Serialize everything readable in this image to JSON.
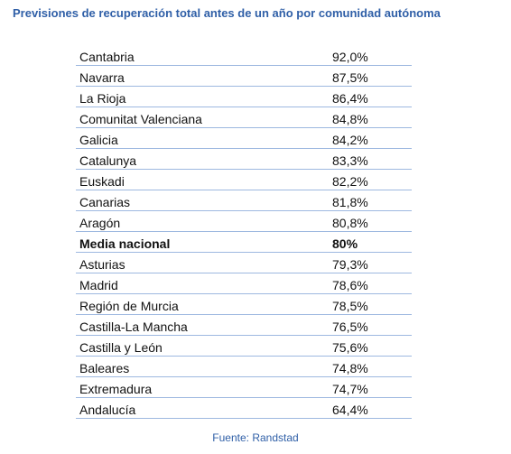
{
  "title": "Previsiones de recuperación total antes de un año por comunidad autónoma",
  "source": "Fuente: Randstad",
  "chart_data": {
    "type": "table",
    "title": "Previsiones de recuperación total antes de un año por comunidad autónoma",
    "columns": [
      "",
      ""
    ],
    "rows": [
      {
        "region": "Cantabria",
        "value": "92,0%"
      },
      {
        "region": "Navarra",
        "value": "87,5%"
      },
      {
        "region": "La Rioja",
        "value": "86,4%"
      },
      {
        "region": "Comunitat Valenciana",
        "value": "84,8%"
      },
      {
        "region": "Galicia",
        "value": "84,2%"
      },
      {
        "region": "Catalunya",
        "value": "83,3%"
      },
      {
        "region": "Euskadi",
        "value": "82,2%"
      },
      {
        "region": "Canarias",
        "value": "81,8%"
      },
      {
        "region": "Aragón",
        "value": "80,8%"
      },
      {
        "region": "Media nacional",
        "value": "80%",
        "highlight": true
      },
      {
        "region": "Asturias",
        "value": "79,3%"
      },
      {
        "region": "Madrid",
        "value": "78,6%"
      },
      {
        "region": "Región de Murcia",
        "value": "78,5%"
      },
      {
        "region": "Castilla-La Mancha",
        "value": "76,5%"
      },
      {
        "region": "Castilla y León",
        "value": "75,6%"
      },
      {
        "region": "Baleares",
        "value": "74,8%"
      },
      {
        "region": "Extremadura",
        "value": "74,7%"
      },
      {
        "region": "Andalucía",
        "value": "64,4%"
      }
    ],
    "colors": {
      "title": "#2f5fa7",
      "rule": "#9db8e0",
      "text": "#111111"
    }
  }
}
